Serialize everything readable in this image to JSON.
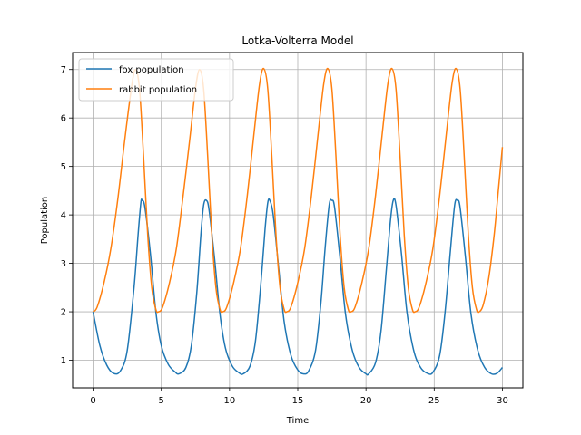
{
  "chart_data": {
    "type": "line",
    "title": "Lotka-Volterra Model",
    "xlabel": "Time",
    "ylabel": "Population",
    "xlim": [
      -1.5,
      31.5
    ],
    "ylim": [
      0.43,
      7.35
    ],
    "xticks": [
      0,
      5,
      10,
      15,
      20,
      25,
      30
    ],
    "yticks": [
      1,
      2,
      3,
      4,
      5,
      6,
      7
    ],
    "grid": true,
    "legend_position": "upper-left",
    "series": [
      {
        "name": "fox population",
        "color": "#1f77b4",
        "points": [
          [
            0.0,
            2.0
          ],
          [
            0.5,
            1.3
          ],
          [
            1.0,
            0.9
          ],
          [
            1.5,
            0.73
          ],
          [
            2.0,
            0.78
          ],
          [
            2.5,
            1.2
          ],
          [
            3.0,
            2.5
          ],
          [
            3.3,
            3.6
          ],
          [
            3.5,
            4.25
          ],
          [
            3.6,
            4.3
          ],
          [
            3.8,
            4.15
          ],
          [
            4.2,
            3.2
          ],
          [
            4.6,
            2.0
          ],
          [
            5.0,
            1.3
          ],
          [
            5.5,
            0.92
          ],
          [
            6.0,
            0.76
          ],
          [
            6.3,
            0.72
          ],
          [
            6.8,
            0.85
          ],
          [
            7.2,
            1.3
          ],
          [
            7.6,
            2.4
          ],
          [
            7.9,
            3.6
          ],
          [
            8.1,
            4.2
          ],
          [
            8.3,
            4.3
          ],
          [
            8.5,
            4.1
          ],
          [
            8.9,
            3.1
          ],
          [
            9.3,
            1.95
          ],
          [
            9.7,
            1.25
          ],
          [
            10.2,
            0.88
          ],
          [
            10.7,
            0.74
          ],
          [
            11.0,
            0.72
          ],
          [
            11.5,
            0.88
          ],
          [
            11.9,
            1.4
          ],
          [
            12.3,
            2.6
          ],
          [
            12.6,
            3.7
          ],
          [
            12.8,
            4.25
          ],
          [
            12.95,
            4.3
          ],
          [
            13.2,
            4.0
          ],
          [
            13.6,
            2.9
          ],
          [
            14.0,
            1.8
          ],
          [
            14.5,
            1.1
          ],
          [
            15.0,
            0.8
          ],
          [
            15.4,
            0.72
          ],
          [
            15.8,
            0.78
          ],
          [
            16.3,
            1.2
          ],
          [
            16.7,
            2.2
          ],
          [
            17.0,
            3.3
          ],
          [
            17.3,
            4.2
          ],
          [
            17.5,
            4.3
          ],
          [
            17.7,
            4.15
          ],
          [
            18.1,
            3.1
          ],
          [
            18.5,
            1.95
          ],
          [
            19.0,
            1.2
          ],
          [
            19.5,
            0.85
          ],
          [
            20.0,
            0.72
          ],
          [
            20.2,
            0.72
          ],
          [
            20.7,
            0.95
          ],
          [
            21.1,
            1.6
          ],
          [
            21.5,
            2.9
          ],
          [
            21.8,
            3.9
          ],
          [
            22.0,
            4.3
          ],
          [
            22.2,
            4.2
          ],
          [
            22.6,
            3.2
          ],
          [
            23.0,
            2.0
          ],
          [
            23.5,
            1.2
          ],
          [
            24.0,
            0.85
          ],
          [
            24.5,
            0.73
          ],
          [
            24.9,
            0.75
          ],
          [
            25.4,
            1.1
          ],
          [
            25.8,
            2.0
          ],
          [
            26.2,
            3.3
          ],
          [
            26.5,
            4.2
          ],
          [
            26.7,
            4.3
          ],
          [
            26.9,
            4.15
          ],
          [
            27.3,
            3.1
          ],
          [
            27.7,
            1.95
          ],
          [
            28.2,
            1.2
          ],
          [
            28.7,
            0.85
          ],
          [
            29.2,
            0.72
          ],
          [
            29.6,
            0.73
          ],
          [
            30.0,
            0.85
          ]
        ]
      },
      {
        "name": "rabbit population",
        "color": "#ff7f0e",
        "points": [
          [
            0.0,
            2.0
          ],
          [
            0.3,
            2.1
          ],
          [
            0.8,
            2.6
          ],
          [
            1.3,
            3.3
          ],
          [
            1.8,
            4.3
          ],
          [
            2.3,
            5.5
          ],
          [
            2.8,
            6.6
          ],
          [
            3.1,
            7.0
          ],
          [
            3.4,
            6.6
          ],
          [
            3.7,
            5.2
          ],
          [
            4.0,
            3.6
          ],
          [
            4.3,
            2.5
          ],
          [
            4.6,
            2.05
          ],
          [
            4.8,
            2.0
          ],
          [
            5.1,
            2.1
          ],
          [
            5.6,
            2.6
          ],
          [
            6.1,
            3.3
          ],
          [
            6.6,
            4.4
          ],
          [
            7.1,
            5.6
          ],
          [
            7.5,
            6.6
          ],
          [
            7.8,
            7.0
          ],
          [
            8.1,
            6.6
          ],
          [
            8.4,
            5.2
          ],
          [
            8.7,
            3.6
          ],
          [
            9.0,
            2.5
          ],
          [
            9.3,
            2.05
          ],
          [
            9.5,
            2.0
          ],
          [
            9.8,
            2.1
          ],
          [
            10.3,
            2.6
          ],
          [
            10.8,
            3.3
          ],
          [
            11.3,
            4.4
          ],
          [
            11.8,
            5.7
          ],
          [
            12.2,
            6.7
          ],
          [
            12.5,
            7.02
          ],
          [
            12.8,
            6.6
          ],
          [
            13.1,
            5.2
          ],
          [
            13.4,
            3.6
          ],
          [
            13.7,
            2.5
          ],
          [
            14.0,
            2.05
          ],
          [
            14.2,
            2.0
          ],
          [
            14.5,
            2.1
          ],
          [
            15.0,
            2.6
          ],
          [
            15.5,
            3.3
          ],
          [
            16.0,
            4.4
          ],
          [
            16.5,
            5.7
          ],
          [
            16.9,
            6.7
          ],
          [
            17.2,
            7.02
          ],
          [
            17.5,
            6.6
          ],
          [
            17.8,
            5.2
          ],
          [
            18.1,
            3.6
          ],
          [
            18.4,
            2.5
          ],
          [
            18.7,
            2.05
          ],
          [
            18.9,
            2.0
          ],
          [
            19.2,
            2.1
          ],
          [
            19.7,
            2.6
          ],
          [
            20.2,
            3.3
          ],
          [
            20.7,
            4.4
          ],
          [
            21.2,
            5.7
          ],
          [
            21.6,
            6.7
          ],
          [
            21.9,
            7.02
          ],
          [
            22.2,
            6.6
          ],
          [
            22.5,
            5.2
          ],
          [
            22.8,
            3.6
          ],
          [
            23.1,
            2.5
          ],
          [
            23.4,
            2.05
          ],
          [
            23.6,
            2.0
          ],
          [
            23.9,
            2.1
          ],
          [
            24.4,
            2.6
          ],
          [
            24.9,
            3.3
          ],
          [
            25.4,
            4.4
          ],
          [
            25.9,
            5.7
          ],
          [
            26.3,
            6.7
          ],
          [
            26.6,
            7.02
          ],
          [
            26.9,
            6.6
          ],
          [
            27.2,
            5.2
          ],
          [
            27.5,
            3.6
          ],
          [
            27.8,
            2.5
          ],
          [
            28.1,
            2.05
          ],
          [
            28.3,
            2.0
          ],
          [
            28.6,
            2.15
          ],
          [
            29.0,
            2.7
          ],
          [
            29.4,
            3.6
          ],
          [
            29.7,
            4.5
          ],
          [
            30.0,
            5.4
          ]
        ]
      }
    ]
  }
}
